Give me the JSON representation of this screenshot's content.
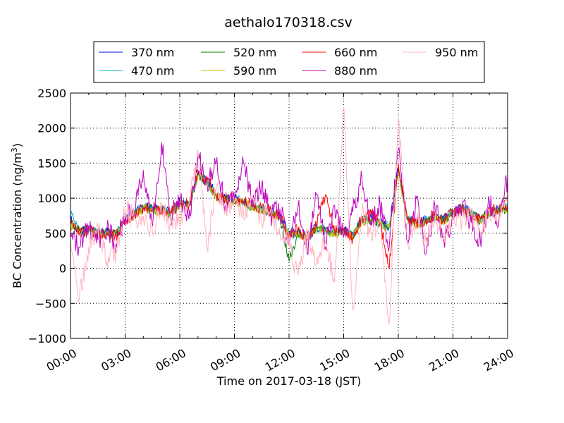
{
  "chart_data": {
    "type": "line",
    "title": "aethalo170318.csv",
    "xlabel": "Time on 2017-03-18 (JST)",
    "ylabel": "BC Concentration (ng/m",
    "ylabel_superscript": "3",
    "ylabel_suffix": ")",
    "xlim": [
      0,
      24
    ],
    "ylim": [
      -1000,
      2500
    ],
    "x_ticks": [
      0,
      3,
      6,
      9,
      12,
      15,
      18,
      21,
      24
    ],
    "x_tick_labels": [
      "00:00",
      "03:00",
      "06:00",
      "09:00",
      "12:00",
      "15:00",
      "18:00",
      "21:00",
      "24:00"
    ],
    "y_ticks": [
      -1000,
      -500,
      0,
      500,
      1000,
      1500,
      2000,
      2500
    ],
    "y_tick_labels": [
      "−1000",
      "−500",
      "0",
      "500",
      "1000",
      "1500",
      "2000",
      "2500"
    ],
    "grid": true,
    "legend_position": "top",
    "x": [
      0.0,
      0.5,
      1.0,
      1.5,
      2.0,
      2.5,
      3.0,
      3.5,
      4.0,
      4.5,
      5.0,
      5.5,
      6.0,
      6.5,
      7.0,
      7.5,
      8.0,
      8.5,
      9.0,
      9.5,
      10.0,
      10.5,
      11.0,
      11.5,
      12.0,
      12.5,
      13.0,
      13.5,
      14.0,
      14.5,
      15.0,
      15.5,
      16.0,
      16.5,
      17.0,
      17.5,
      18.0,
      18.5,
      19.0,
      19.5,
      20.0,
      20.5,
      21.0,
      21.5,
      22.0,
      22.5,
      23.0,
      23.5,
      24.0
    ],
    "series": [
      {
        "name": "370 nm",
        "color": "#0000ff",
        "values": [
          700,
          520,
          560,
          500,
          520,
          480,
          700,
          780,
          880,
          850,
          820,
          800,
          950,
          900,
          1350,
          1250,
          1050,
          1000,
          1000,
          950,
          900,
          850,
          820,
          750,
          500,
          520,
          450,
          600,
          550,
          520,
          550,
          480,
          700,
          720,
          650,
          600,
          1450,
          700,
          650,
          700,
          750,
          700,
          800,
          850,
          800,
          700,
          800,
          850,
          880
        ]
      },
      {
        "name": "470 nm",
        "color": "#00bfbf",
        "values": [
          800,
          540,
          570,
          510,
          530,
          490,
          710,
          790,
          870,
          860,
          830,
          810,
          940,
          910,
          1340,
          1240,
          1040,
          990,
          990,
          940,
          890,
          840,
          810,
          740,
          490,
          510,
          440,
          590,
          540,
          510,
          540,
          470,
          690,
          710,
          640,
          590,
          1400,
          690,
          640,
          690,
          740,
          710,
          820,
          860,
          790,
          690,
          790,
          840,
          870
        ]
      },
      {
        "name": "520 nm",
        "color": "#008000",
        "values": [
          650,
          530,
          550,
          500,
          510,
          470,
          690,
          770,
          860,
          840,
          810,
          790,
          930,
          890,
          1330,
          1230,
          1030,
          980,
          980,
          930,
          880,
          830,
          800,
          730,
          100,
          500,
          430,
          580,
          530,
          500,
          530,
          460,
          680,
          700,
          630,
          580,
          1380,
          680,
          630,
          680,
          730,
          690,
          790,
          840,
          780,
          680,
          780,
          830,
          860
        ]
      },
      {
        "name": "590 nm",
        "color": "#bfbf00",
        "values": [
          600,
          510,
          540,
          490,
          500,
          460,
          680,
          760,
          850,
          830,
          800,
          780,
          920,
          880,
          1320,
          1220,
          1020,
          970,
          970,
          920,
          870,
          820,
          790,
          720,
          480,
          490,
          420,
          570,
          520,
          490,
          520,
          450,
          670,
          690,
          620,
          570,
          1360,
          670,
          620,
          670,
          720,
          680,
          780,
          830,
          770,
          670,
          770,
          820,
          850
        ]
      },
      {
        "name": "660 nm",
        "color": "#ff0000",
        "values": [
          620,
          500,
          560,
          480,
          510,
          450,
          700,
          780,
          860,
          840,
          820,
          800,
          950,
          890,
          1400,
          1260,
          1050,
          990,
          1000,
          960,
          900,
          860,
          820,
          750,
          460,
          560,
          400,
          620,
          1050,
          540,
          580,
          420,
          720,
          760,
          660,
          0,
          1500,
          700,
          640,
          700,
          760,
          700,
          820,
          860,
          800,
          700,
          800,
          870,
          900
        ]
      },
      {
        "name": "880 nm",
        "color": "#bf00bf",
        "values": [
          500,
          300,
          600,
          400,
          550,
          350,
          750,
          800,
          1400,
          600,
          1800,
          750,
          1000,
          700,
          1600,
          1200,
          1500,
          900,
          1000,
          1500,
          900,
          1200,
          750,
          850,
          350,
          900,
          200,
          1050,
          300,
          900,
          450,
          800,
          1300,
          650,
          900,
          300,
          1700,
          400,
          1000,
          200,
          900,
          400,
          700,
          900,
          650,
          400,
          950,
          600,
          1300
        ]
      },
      {
        "name": "950 nm",
        "color": "#ffb6c1",
        "values": [
          400,
          -400,
          300,
          600,
          100,
          200,
          850,
          700,
          750,
          500,
          900,
          600,
          700,
          900,
          1650,
          300,
          1150,
          800,
          950,
          800,
          1000,
          700,
          850,
          500,
          300,
          -100,
          500,
          100,
          400,
          -200,
          2300,
          -600,
          800,
          500,
          700,
          -800,
          2150,
          350,
          700,
          400,
          650,
          500,
          650,
          700,
          750,
          500,
          850,
          700,
          950
        ]
      }
    ]
  }
}
